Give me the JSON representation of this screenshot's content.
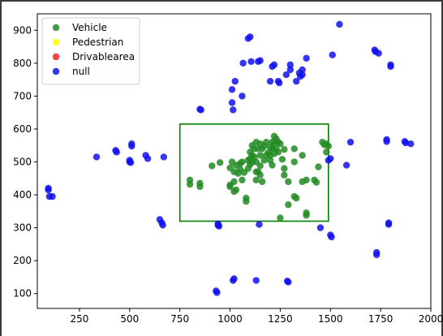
{
  "chart_data": {
    "type": "scatter",
    "title": "",
    "xlabel": "",
    "ylabel": "",
    "xlim": [
      40,
      2000
    ],
    "ylim": [
      55,
      950
    ],
    "xticks": [
      250,
      500,
      750,
      1000,
      1250,
      1500,
      1750,
      2000
    ],
    "yticks": [
      100,
      200,
      300,
      400,
      500,
      600,
      700,
      800,
      900
    ],
    "grid": false,
    "legend_position": "top-left",
    "legend": [
      {
        "name": "Vehicle",
        "color": "#228B22"
      },
      {
        "name": "Pedestrian",
        "color": "#FFFF00"
      },
      {
        "name": "Drivablearea",
        "color": "#FF2020"
      },
      {
        "name": "null",
        "color": "#1010EE"
      }
    ],
    "rectangle": {
      "x0": 750,
      "y0": 320,
      "x1": 1490,
      "y1": 615,
      "color": "#008000"
    },
    "series": [
      {
        "name": "Vehicle",
        "color": "#228B22",
        "points": [
          [
            800,
            445
          ],
          [
            800,
            432
          ],
          [
            850,
            435
          ],
          [
            850,
            425
          ],
          [
            910,
            488
          ],
          [
            950,
            498
          ],
          [
            1000,
            482
          ],
          [
            1000,
            430
          ],
          [
            1000,
            425
          ],
          [
            1020,
            440
          ],
          [
            1020,
            410
          ],
          [
            1030,
            415
          ],
          [
            1010,
            500
          ],
          [
            1020,
            470
          ],
          [
            1030,
            490
          ],
          [
            1040,
            465
          ],
          [
            1050,
            495
          ],
          [
            1050,
            478
          ],
          [
            1060,
            500
          ],
          [
            1070,
            468
          ],
          [
            1060,
            445
          ],
          [
            1080,
            390
          ],
          [
            1080,
            380
          ],
          [
            1090,
            505
          ],
          [
            1090,
            480
          ],
          [
            1100,
            530
          ],
          [
            1100,
            510
          ],
          [
            1100,
            492
          ],
          [
            1110,
            550
          ],
          [
            1110,
            520
          ],
          [
            1110,
            500
          ],
          [
            1120,
            540
          ],
          [
            1120,
            515
          ],
          [
            1130,
            560
          ],
          [
            1130,
            500
          ],
          [
            1130,
            470
          ],
          [
            1130,
            445
          ],
          [
            1140,
            540
          ],
          [
            1140,
            470
          ],
          [
            1150,
            555
          ],
          [
            1150,
            520
          ],
          [
            1150,
            488
          ],
          [
            1150,
            460
          ],
          [
            1160,
            540
          ],
          [
            1160,
            440
          ],
          [
            1170,
            548
          ],
          [
            1170,
            505
          ],
          [
            1180,
            520
          ],
          [
            1180,
            560
          ],
          [
            1190,
            528
          ],
          [
            1200,
            545
          ],
          [
            1200,
            520
          ],
          [
            1200,
            505
          ],
          [
            1210,
            560
          ],
          [
            1210,
            540
          ],
          [
            1210,
            490
          ],
          [
            1220,
            578
          ],
          [
            1220,
            555
          ],
          [
            1220,
            525
          ],
          [
            1230,
            570
          ],
          [
            1230,
            540
          ],
          [
            1240,
            560
          ],
          [
            1240,
            530
          ],
          [
            1250,
            555
          ],
          [
            1250,
            330
          ],
          [
            1260,
            508
          ],
          [
            1270,
            538
          ],
          [
            1270,
            480
          ],
          [
            1270,
            460
          ],
          [
            1290,
            440
          ],
          [
            1290,
            370
          ],
          [
            1320,
            540
          ],
          [
            1320,
            500
          ],
          [
            1320,
            395
          ],
          [
            1330,
            390
          ],
          [
            1360,
            520
          ],
          [
            1360,
            440
          ],
          [
            1380,
            445
          ],
          [
            1380,
            345
          ],
          [
            1380,
            338
          ],
          [
            1420,
            445
          ],
          [
            1430,
            438
          ],
          [
            1440,
            485
          ],
          [
            1460,
            560
          ],
          [
            1470,
            552
          ],
          [
            1480,
            555
          ],
          [
            1480,
            530
          ],
          [
            1490,
            548
          ]
        ]
      },
      {
        "name": "null",
        "color": "#1010EE",
        "points": [
          [
            95,
            420
          ],
          [
            95,
            415
          ],
          [
            100,
            395
          ],
          [
            115,
            395
          ],
          [
            335,
            515
          ],
          [
            430,
            535
          ],
          [
            435,
            530
          ],
          [
            500,
            505
          ],
          [
            500,
            500
          ],
          [
            505,
            498
          ],
          [
            510,
            555
          ],
          [
            510,
            548
          ],
          [
            580,
            520
          ],
          [
            590,
            510
          ],
          [
            650,
            325
          ],
          [
            660,
            315
          ],
          [
            665,
            308
          ],
          [
            670,
            515
          ],
          [
            850,
            660
          ],
          [
            855,
            658
          ],
          [
            930,
            108
          ],
          [
            935,
            103
          ],
          [
            940,
            312
          ],
          [
            940,
            308
          ],
          [
            945,
            305
          ],
          [
            1010,
            720
          ],
          [
            1010,
            680
          ],
          [
            1015,
            658
          ],
          [
            1015,
            140
          ],
          [
            1020,
            145
          ],
          [
            1025,
            745
          ],
          [
            1060,
            700
          ],
          [
            1065,
            800
          ],
          [
            1090,
            875
          ],
          [
            1100,
            880
          ],
          [
            1105,
            805
          ],
          [
            1130,
            140
          ],
          [
            1140,
            805
          ],
          [
            1145,
            310
          ],
          [
            1150,
            808
          ],
          [
            1200,
            745
          ],
          [
            1210,
            790
          ],
          [
            1220,
            795
          ],
          [
            1240,
            745
          ],
          [
            1245,
            740
          ],
          [
            1280,
            765
          ],
          [
            1285,
            138
          ],
          [
            1290,
            135
          ],
          [
            1300,
            780
          ],
          [
            1300,
            795
          ],
          [
            1330,
            745
          ],
          [
            1345,
            770
          ],
          [
            1350,
            760
          ],
          [
            1360,
            780
          ],
          [
            1360,
            765
          ],
          [
            1380,
            815
          ],
          [
            1450,
            300
          ],
          [
            1490,
            505
          ],
          [
            1500,
            278
          ],
          [
            1500,
            510
          ],
          [
            1505,
            272
          ],
          [
            1510,
            825
          ],
          [
            1545,
            918
          ],
          [
            1580,
            490
          ],
          [
            1600,
            560
          ],
          [
            1720,
            840
          ],
          [
            1725,
            835
          ],
          [
            1730,
            225
          ],
          [
            1730,
            218
          ],
          [
            1740,
            830
          ],
          [
            1780,
            568
          ],
          [
            1780,
            562
          ],
          [
            1790,
            315
          ],
          [
            1790,
            310
          ],
          [
            1800,
            795
          ],
          [
            1800,
            790
          ],
          [
            1870,
            562
          ],
          [
            1875,
            558
          ],
          [
            1900,
            555
          ]
        ]
      }
    ]
  }
}
